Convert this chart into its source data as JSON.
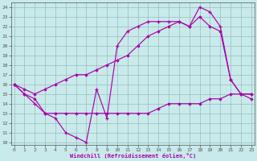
{
  "bg_color": "#c8eaea",
  "line_color": "#aa00aa",
  "grid_color": "#9bbcbc",
  "xlim_min": -0.3,
  "xlim_max": 23.3,
  "ylim_min": 9.7,
  "ylim_max": 24.5,
  "ytick_vals": [
    10,
    11,
    12,
    13,
    14,
    15,
    16,
    17,
    18,
    19,
    20,
    21,
    22,
    23,
    24
  ],
  "xtick_vals": [
    0,
    1,
    2,
    3,
    4,
    5,
    6,
    7,
    8,
    9,
    10,
    11,
    12,
    13,
    14,
    15,
    16,
    17,
    18,
    19,
    20,
    21,
    22,
    23
  ],
  "xlabel": "Windchill (Refroidissement éolien,°C)",
  "line1_x": [
    0,
    1,
    2,
    3,
    4,
    5,
    6,
    7,
    8,
    9,
    10,
    11,
    12,
    13,
    14,
    15,
    16,
    17,
    18,
    19,
    20,
    21,
    22,
    23
  ],
  "line1_y": [
    16,
    15,
    14,
    13,
    12.5,
    11,
    10.5,
    10,
    15.5,
    12.5,
    20,
    21.5,
    22,
    22.5,
    22.5,
    22.5,
    22.5,
    22,
    24,
    23.5,
    22,
    16.5,
    15,
    15
  ],
  "line2_x": [
    0,
    1,
    2,
    3,
    4,
    5,
    6,
    7,
    8,
    9,
    10,
    11,
    12,
    13,
    14,
    15,
    16,
    17,
    18,
    19,
    20,
    21,
    22,
    23
  ],
  "line2_y": [
    16,
    15,
    14.5,
    13,
    13,
    13,
    13,
    13,
    13,
    13,
    13,
    13,
    13,
    13,
    13.5,
    14,
    14,
    14,
    14,
    14.5,
    14.5,
    15,
    15,
    14.5
  ],
  "line3_x": [
    0,
    1,
    2,
    3,
    4,
    5,
    6,
    7,
    8,
    9,
    10,
    11,
    12,
    13,
    14,
    15,
    16,
    17,
    18,
    19,
    20,
    21,
    22,
    23
  ],
  "line3_y": [
    16,
    15.5,
    15,
    15.5,
    16,
    16.5,
    17,
    17,
    17.5,
    18,
    18.5,
    19,
    20,
    21,
    21.5,
    22,
    22.5,
    22,
    23,
    22,
    21.5,
    16.5,
    15,
    15
  ]
}
